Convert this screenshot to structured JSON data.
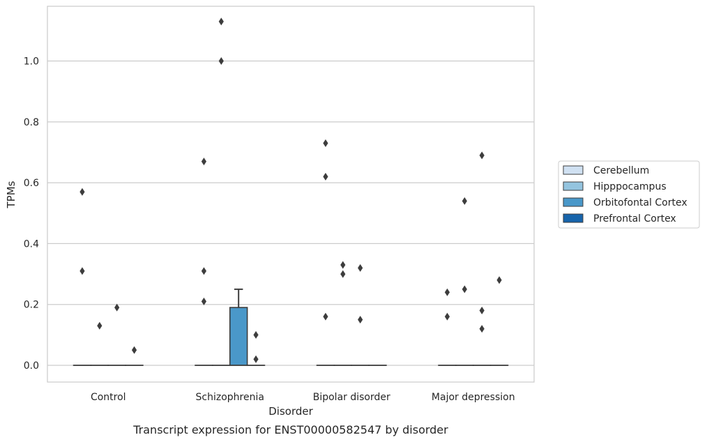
{
  "chart_data": {
    "type": "box",
    "title": "",
    "caption": "Transcript expression for ENST00000582547 by disorder",
    "xlabel": "Disorder",
    "ylabel": "TPMs",
    "categories": [
      "Control",
      "Schizophrenia",
      "Bipolar disorder",
      "Major depression"
    ],
    "ylim": [
      -0.055,
      1.18
    ],
    "yticks": [
      "0.0",
      "0.2",
      "0.4",
      "0.6",
      "0.8",
      "1.0"
    ],
    "grid": true,
    "legend": {
      "placement": "center-right",
      "entries": [
        "Cerebellum",
        "Hipppocampus",
        "Orbitofontal Cortex",
        "Prefrontal Cortex"
      ]
    },
    "hue_colors": [
      "#d0e1f2",
      "#94c4df",
      "#4a98c9",
      "#1764ab"
    ],
    "boxes": [
      {
        "category": "Control",
        "hue": "Cerebellum",
        "q1": 0,
        "median": 0,
        "q3": 0,
        "whisker_low": 0,
        "whisker_high": 0,
        "outliers": [
          0.31,
          0.57
        ]
      },
      {
        "category": "Control",
        "hue": "Hipppocampus",
        "q1": 0,
        "median": 0,
        "q3": 0,
        "whisker_low": 0,
        "whisker_high": 0,
        "outliers": [
          0.13
        ]
      },
      {
        "category": "Control",
        "hue": "Orbitofontal Cortex",
        "q1": 0,
        "median": 0,
        "q3": 0,
        "whisker_low": 0,
        "whisker_high": 0,
        "outliers": [
          0.19
        ]
      },
      {
        "category": "Control",
        "hue": "Prefrontal Cortex",
        "q1": 0,
        "median": 0,
        "q3": 0,
        "whisker_low": 0,
        "whisker_high": 0,
        "outliers": [
          0.05
        ]
      },
      {
        "category": "Schizophrenia",
        "hue": "Cerebellum",
        "q1": 0,
        "median": 0,
        "q3": 0,
        "whisker_low": 0,
        "whisker_high": 0,
        "outliers": [
          0.21,
          0.31,
          0.67
        ]
      },
      {
        "category": "Schizophrenia",
        "hue": "Hipppocampus",
        "q1": 0,
        "median": 0,
        "q3": 0,
        "whisker_low": 0,
        "whisker_high": 0,
        "outliers": [
          1.0,
          1.13
        ]
      },
      {
        "category": "Schizophrenia",
        "hue": "Orbitofontal Cortex",
        "q1": 0,
        "median": 0,
        "q3": 0.19,
        "whisker_low": 0,
        "whisker_high": 0.25,
        "outliers": []
      },
      {
        "category": "Schizophrenia",
        "hue": "Prefrontal Cortex",
        "q1": 0,
        "median": 0,
        "q3": 0,
        "whisker_low": 0,
        "whisker_high": 0,
        "outliers": [
          0.02,
          0.1
        ]
      },
      {
        "category": "Bipolar disorder",
        "hue": "Cerebellum",
        "q1": 0,
        "median": 0,
        "q3": 0,
        "whisker_low": 0,
        "whisker_high": 0,
        "outliers": [
          0.16,
          0.62,
          0.73
        ]
      },
      {
        "category": "Bipolar disorder",
        "hue": "Hipppocampus",
        "q1": 0,
        "median": 0,
        "q3": 0,
        "whisker_low": 0,
        "whisker_high": 0,
        "outliers": [
          0.3,
          0.33
        ]
      },
      {
        "category": "Bipolar disorder",
        "hue": "Orbitofontal Cortex",
        "q1": 0,
        "median": 0,
        "q3": 0,
        "whisker_low": 0,
        "whisker_high": 0,
        "outliers": [
          0.15,
          0.32
        ]
      },
      {
        "category": "Bipolar disorder",
        "hue": "Prefrontal Cortex",
        "q1": 0,
        "median": 0,
        "q3": 0,
        "whisker_low": 0,
        "whisker_high": 0,
        "outliers": []
      },
      {
        "category": "Major depression",
        "hue": "Cerebellum",
        "q1": 0,
        "median": 0,
        "q3": 0,
        "whisker_low": 0,
        "whisker_high": 0,
        "outliers": [
          0.16,
          0.24
        ]
      },
      {
        "category": "Major depression",
        "hue": "Hipppocampus",
        "q1": 0,
        "median": 0,
        "q3": 0,
        "whisker_low": 0,
        "whisker_high": 0,
        "outliers": [
          0.25,
          0.54
        ]
      },
      {
        "category": "Major depression",
        "hue": "Orbitofontal Cortex",
        "q1": 0,
        "median": 0,
        "q3": 0,
        "whisker_low": 0,
        "whisker_high": 0,
        "outliers": [
          0.12,
          0.18,
          0.69
        ]
      },
      {
        "category": "Major depression",
        "hue": "Prefrontal Cortex",
        "q1": 0,
        "median": 0,
        "q3": 0,
        "whisker_low": 0,
        "whisker_high": 0,
        "outliers": [
          0.28
        ]
      }
    ]
  }
}
